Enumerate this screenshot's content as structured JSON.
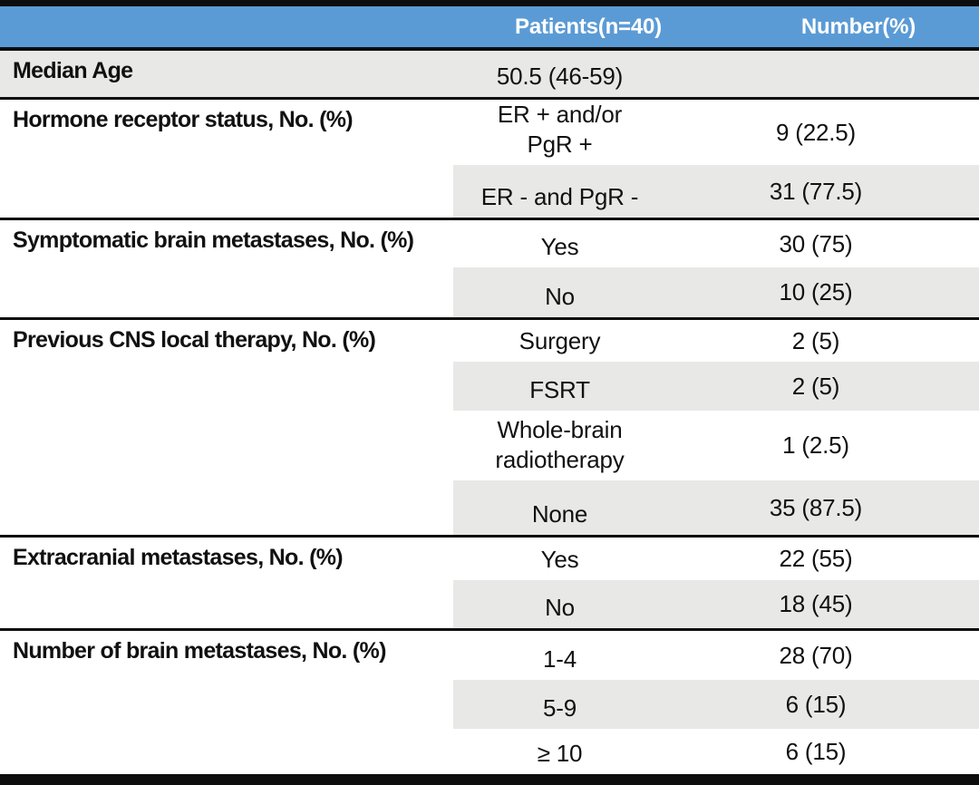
{
  "table": {
    "header": {
      "label_column": "",
      "patients": "Patients(n=40)",
      "number": "Number(%)"
    },
    "colors": {
      "header_bg": "#5B9BD5",
      "header_text": "#FFFFFF",
      "row_shade": "#E8E8E7",
      "border": "#0D0D0D"
    },
    "sections": [
      {
        "label": "Median Age",
        "rows": [
          {
            "value": "50.5 (46-59)",
            "number": ""
          }
        ]
      },
      {
        "label": "Hormone receptor status, No. (%)",
        "rows": [
          {
            "value": "ER + and/or\nPgR +",
            "number": "9 (22.5)"
          },
          {
            "value": "ER - and PgR -",
            "number": "31 (77.5)"
          }
        ]
      },
      {
        "label": "Symptomatic brain metastases, No. (%)",
        "rows": [
          {
            "value": "Yes",
            "number": "30 (75)"
          },
          {
            "value": "No",
            "number": "10 (25)"
          }
        ]
      },
      {
        "label": "Previous CNS local therapy, No. (%)",
        "rows": [
          {
            "value": "Surgery",
            "number": "2 (5)"
          },
          {
            "value": "FSRT",
            "number": "2 (5)"
          },
          {
            "value": "Whole-brain\nradiotherapy",
            "number": "1 (2.5)"
          },
          {
            "value": "None",
            "number": "35 (87.5)"
          }
        ]
      },
      {
        "label": "Extracranial metastases, No. (%)",
        "rows": [
          {
            "value": "Yes",
            "number": "22 (55)"
          },
          {
            "value": "No",
            "number": "18 (45)"
          }
        ]
      },
      {
        "label": "Number of brain metastases, No. (%)",
        "rows": [
          {
            "value": "1-4",
            "number": "28 (70)"
          },
          {
            "value": "5-9",
            "number": "6 (15)"
          },
          {
            "value": "≥ 10",
            "number": "6 (15)"
          }
        ]
      }
    ]
  }
}
